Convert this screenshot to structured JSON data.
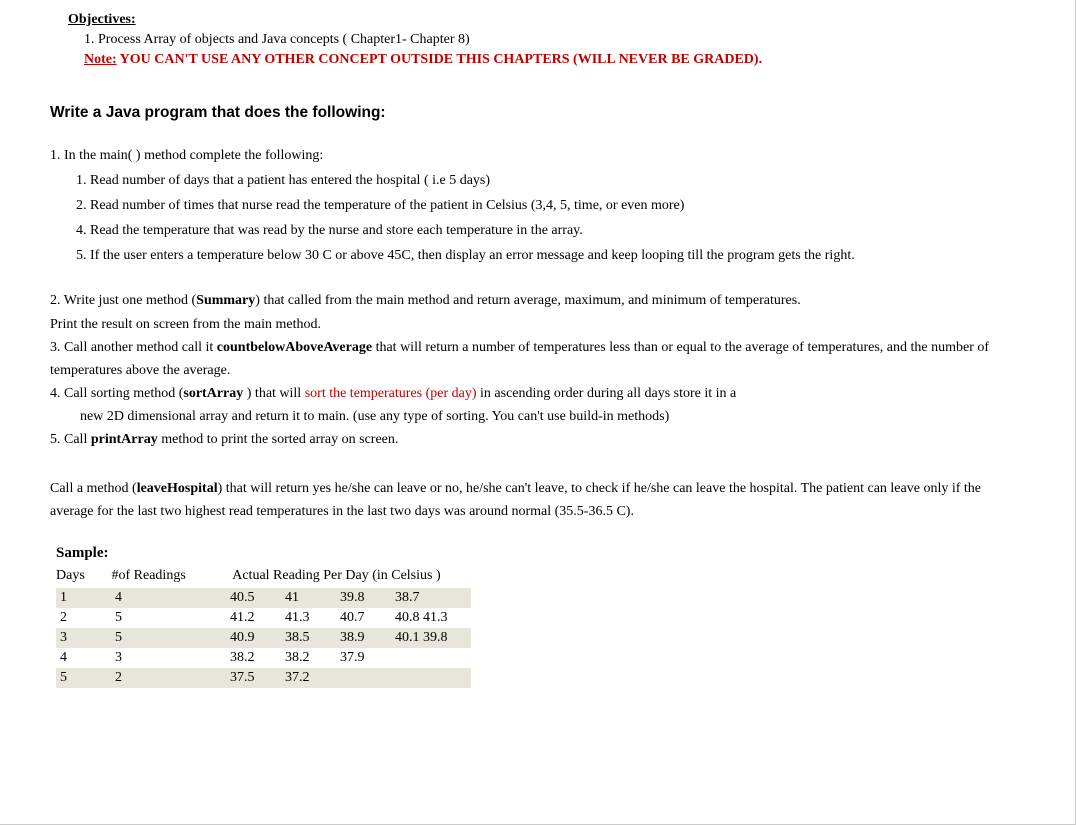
{
  "colors": {
    "text": "#000000",
    "warning": "#c00000",
    "alt_row_bg": "#e8e5da",
    "page_bg": "#ffffff"
  },
  "labels": {
    "objectives": "Objectives:",
    "note": "Note:",
    "sample": "Sample:"
  },
  "objective_line": "1. Process Array of objects and Java concepts ( Chapter1- Chapter 8)",
  "note_text": " YOU CAN'T USE ANY OTHER CONCEPT OUTSIDE THIS CHAPTERS (WILL NEVER BE GRADED).",
  "heading": "Write a Java program that does the following:",
  "step1": {
    "lead": "1.  In the main( ) method complete the following:",
    "items": [
      "1. Read number of days that a patient has entered the hospital ( i.e 5 days)",
      "2. Read number of times that nurse read the temperature of the patient in Celsius (3,4, 5, time, or even more)",
      "4. Read the temperature that was read by the nurse and store each temperature in the array.",
      "5. If the user enters a temperature below 30 C or above 45C, then display an error message and keep looping till the program gets the right."
    ]
  },
  "step2_a": "2.   Write just one method (",
  "step2_b": "Summary",
  "step2_c": ")  that called from the main method and return average, maximum, and minimum of temperatures.",
  "step2_print": "Print the result on screen from the main method.",
  "step3_a": "3.   Call another method call it ",
  "step3_b": "countbelowAboveAverage",
  "step3_c": " that will return a number of temperatures less than or equal to the average of temperatures, and the number of temperatures above the average.",
  "step4_a": "4.   Call sorting method (",
  "step4_b": "sortArray ",
  "step4_c": ") that will ",
  "step4_d": "sort the temperatures (per day)",
  "step4_e": " in ascending order during all days store it in a",
  "step4_f": "new 2D dimensional array and return it to main. (use any type of sorting. You can't use build-in methods)",
  "step5_a": "5. Call ",
  "step5_b": "printArray",
  "step5_c": " method to print the sorted array on screen.",
  "leave_a": "Call a method (",
  "leave_b": "leaveHospital",
  "leave_c": ") that will return yes he/she can leave or no, he/she can't leave, to check if he/she can leave the hospital. The patient can leave only if the average for the last two highest read temperatures in the last two days was around normal (35.5-36.5 C).",
  "table": {
    "columns": {
      "c1": "Days",
      "c2": "#of Readings",
      "c3": "Actual Reading Per Day (in Celsius )"
    },
    "rows": [
      {
        "day": "1",
        "count": "4",
        "r": [
          "40.5",
          "41",
          "39.8",
          "38.7",
          ""
        ]
      },
      {
        "day": "2",
        "count": "5",
        "r": [
          "41.2",
          "41.3",
          "40.7",
          "40.8 41.3",
          ""
        ]
      },
      {
        "day": "3",
        "count": "5",
        "r": [
          "40.9",
          "38.5",
          "38.9",
          "40.1 39.8",
          ""
        ]
      },
      {
        "day": "4",
        "count": "3",
        "r": [
          "38.2",
          "38.2",
          "37.9",
          "",
          ""
        ]
      },
      {
        "day": "5",
        "count": "2",
        "r": [
          "37.5",
          "37.2",
          "",
          "",
          ""
        ]
      }
    ]
  }
}
